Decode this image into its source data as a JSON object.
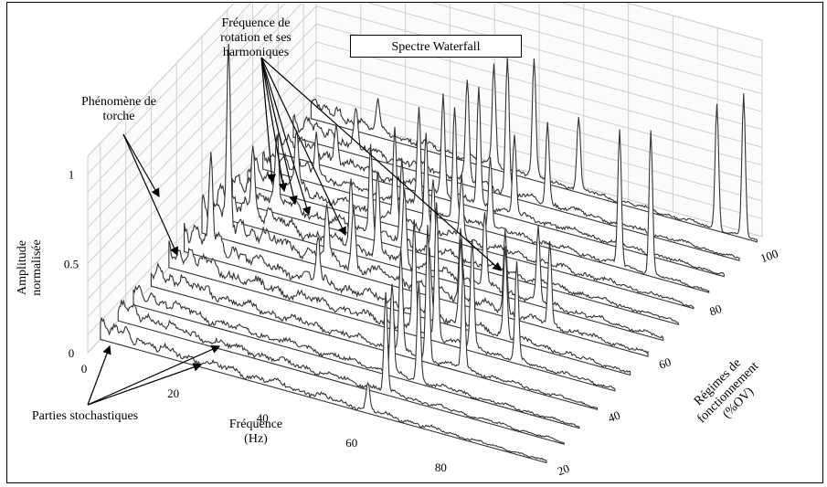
{
  "chart_data": {
    "type": "waterfall",
    "title": "Spectre Waterfall",
    "xlabel": "Fréquence\n(Hz)",
    "ylabel": "Régimes de\nfonctionnement\n(%OV)",
    "zlabel": "Amplitude\nnormalisée",
    "xlim": [
      0,
      100
    ],
    "ylim": [
      15,
      105
    ],
    "zlim": [
      0,
      1.1
    ],
    "x_ticks": [
      "0",
      "20",
      "40",
      "60",
      "80"
    ],
    "y_ticks": [
      "20",
      "40",
      "60",
      "80",
      "100"
    ],
    "z_ticks": [
      "0",
      "0.5",
      "1"
    ],
    "grid": true,
    "regimes": [
      20,
      27,
      33,
      40,
      47,
      53,
      60,
      66,
      72,
      78,
      84,
      90,
      96,
      103
    ],
    "series": [
      {
        "regime": 20,
        "peaks": [
          [
            60,
            0.15
          ]
        ],
        "noise": 0.05
      },
      {
        "regime": 27,
        "peaks": [
          [
            60,
            0.55
          ]
        ],
        "noise": 0.05
      },
      {
        "regime": 33,
        "peaks": [
          [
            58,
            0.5
          ],
          [
            64,
            0.55
          ]
        ],
        "noise": 0.05
      },
      {
        "regime": 40,
        "peaks": [
          [
            56,
            0.55
          ],
          [
            62,
            0.75
          ],
          [
            70,
            0.55
          ]
        ],
        "noise": 0.06
      },
      {
        "regime": 47,
        "peaks": [
          [
            55,
            0.6
          ],
          [
            60,
            0.75
          ],
          [
            68,
            0.6
          ],
          [
            78,
            0.55
          ]
        ],
        "noise": 0.07
      },
      {
        "regime": 53,
        "peaks": [
          [
            6,
            0.45
          ],
          [
            30,
            0.25
          ],
          [
            55,
            0.35
          ],
          [
            62,
            0.45
          ],
          [
            72,
            0.5
          ]
        ],
        "noise": 0.08
      },
      {
        "regime": 60,
        "peaks": [
          [
            6,
            0.95
          ],
          [
            28,
            0.3
          ],
          [
            34,
            0.35
          ],
          [
            58,
            0.4
          ],
          [
            68,
            0.45
          ],
          [
            78,
            0.45
          ]
        ],
        "noise": 0.09
      },
      {
        "regime": 66,
        "peaks": [
          [
            8,
            0.4
          ],
          [
            30,
            0.4
          ],
          [
            36,
            0.45
          ],
          [
            42,
            0.4
          ],
          [
            60,
            0.4
          ],
          [
            72,
            0.4
          ]
        ],
        "noise": 0.08
      },
      {
        "regime": 72,
        "peaks": [
          [
            10,
            0.35
          ],
          [
            31,
            0.5
          ],
          [
            38,
            0.45
          ],
          [
            45,
            0.4
          ]
        ],
        "noise": 0.07
      },
      {
        "regime": 78,
        "peaks": [
          [
            11,
            0.3
          ],
          [
            33,
            0.5
          ],
          [
            40,
            0.55
          ],
          [
            48,
            0.35
          ]
        ],
        "noise": 0.07
      },
      {
        "regime": 84,
        "peaks": [
          [
            12,
            0.25
          ],
          [
            35,
            0.55
          ],
          [
            43,
            0.6
          ],
          [
            51,
            0.4
          ],
          [
            80,
            0.75
          ],
          [
            87,
            0.8
          ]
        ],
        "noise": 0.06
      },
      {
        "regime": 90,
        "peaks": [
          [
            13,
            0.2
          ],
          [
            37,
            0.55
          ],
          [
            45,
            0.65
          ],
          [
            53,
            0.45
          ]
        ],
        "noise": 0.06
      },
      {
        "regime": 96,
        "peaks": [
          [
            14,
            0.2
          ],
          [
            39,
            0.55
          ],
          [
            48,
            0.75
          ],
          [
            57,
            0.45
          ]
        ],
        "noise": 0.06
      },
      {
        "regime": 103,
        "peaks": [
          [
            15,
            0.15
          ],
          [
            41,
            0.55
          ],
          [
            50,
            0.65
          ],
          [
            60,
            0.4
          ],
          [
            91,
            0.7
          ],
          [
            97,
            0.8
          ],
          [
            103,
            0.95
          ]
        ],
        "noise": 0.05
      }
    ],
    "annotations": [
      {
        "text": "Fréquence de\nrotation et ses\nharmoniques"
      },
      {
        "text": "Phénomène de\ntorche"
      },
      {
        "text": "Parties stochastiques"
      }
    ]
  }
}
